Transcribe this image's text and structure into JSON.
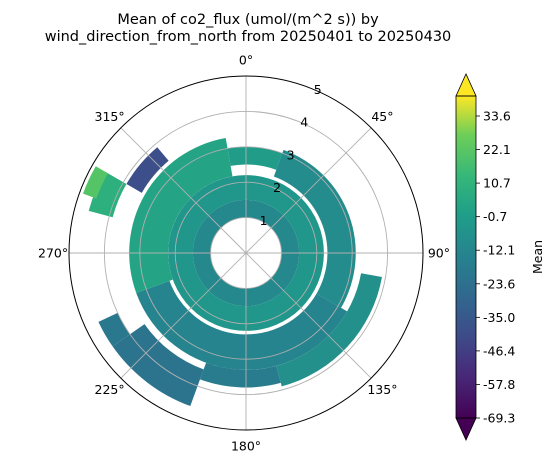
{
  "chart_data": {
    "type": "polar_contour",
    "title_line1": "Mean of co2_flux (umol/(m^2 s)) by",
    "title_line2": "wind_direction_from_north from 20250401 to 20250430",
    "angle_ticks": [
      {
        "deg": 0,
        "label": "0°"
      },
      {
        "deg": 45,
        "label": "45°"
      },
      {
        "deg": 90,
        "label": "90°"
      },
      {
        "deg": 135,
        "label": "135°"
      },
      {
        "deg": 180,
        "label": "180°"
      },
      {
        "deg": 225,
        "label": "225°"
      },
      {
        "deg": 270,
        "label": "270°"
      },
      {
        "deg": 315,
        "label": "315°"
      }
    ],
    "radial_ticks": [
      {
        "r": 1,
        "label": "1"
      },
      {
        "r": 2,
        "label": "2"
      },
      {
        "r": 3,
        "label": "3"
      },
      {
        "r": 4,
        "label": "4"
      },
      {
        "r": 5,
        "label": "5"
      }
    ],
    "rlim": [
      0,
      5
    ],
    "theta_zero": "N",
    "theta_direction": "clockwise",
    "grid": true,
    "colorbar": {
      "label": "Mean",
      "colormap": "viridis",
      "extend": "both",
      "ticks": [
        "33.6",
        "22.1",
        "10.7",
        "-0.7",
        "-12.1",
        "-23.6",
        "-35.0",
        "-46.4",
        "-57.8",
        "-69.3"
      ],
      "vmin": -69.3,
      "vmax": 39.3
    },
    "data_rings": [
      {
        "r_inner": 1.0,
        "r_outer": 1.5,
        "theta_start": 0,
        "theta_end": 360,
        "value": -12
      },
      {
        "r_inner": 1.5,
        "r_outer": 2.2,
        "theta_start": 0,
        "theta_end": 360,
        "value": -5
      },
      {
        "r_inner": 2.5,
        "r_outer": 3.0,
        "theta_start": 350,
        "theta_end": 20,
        "value": -2
      },
      {
        "r_inner": 2.3,
        "r_outer": 3.1,
        "theta_start": 20,
        "theta_end": 120,
        "value": -10
      },
      {
        "r_inner": 2.3,
        "r_outer": 3.3,
        "theta_start": 120,
        "theta_end": 250,
        "value": -14
      },
      {
        "r_inner": 2.2,
        "r_outer": 3.3,
        "theta_start": 250,
        "theta_end": 350,
        "value": 2
      },
      {
        "r_inner": 3.3,
        "r_outer": 3.9,
        "theta_start": 100,
        "theta_end": 165,
        "value": -8
      },
      {
        "r_inner": 3.3,
        "r_outer": 3.8,
        "theta_start": 165,
        "theta_end": 200,
        "value": -18
      },
      {
        "r_inner": 3.5,
        "r_outer": 4.6,
        "theta_start": 200,
        "theta_end": 235,
        "value": -22
      },
      {
        "r_inner": 4.0,
        "r_outer": 4.6,
        "theta_start": 235,
        "theta_end": 245,
        "value": -20
      },
      {
        "r_inner": 3.4,
        "r_outer": 3.9,
        "theta_start": 300,
        "theta_end": 320,
        "value": -40
      },
      {
        "r_inner": 3.9,
        "r_outer": 4.6,
        "theta_start": 285,
        "theta_end": 300,
        "value": 8
      },
      {
        "r_inner": 4.5,
        "r_outer": 4.9,
        "theta_start": 290,
        "theta_end": 300,
        "value": 20
      }
    ]
  }
}
